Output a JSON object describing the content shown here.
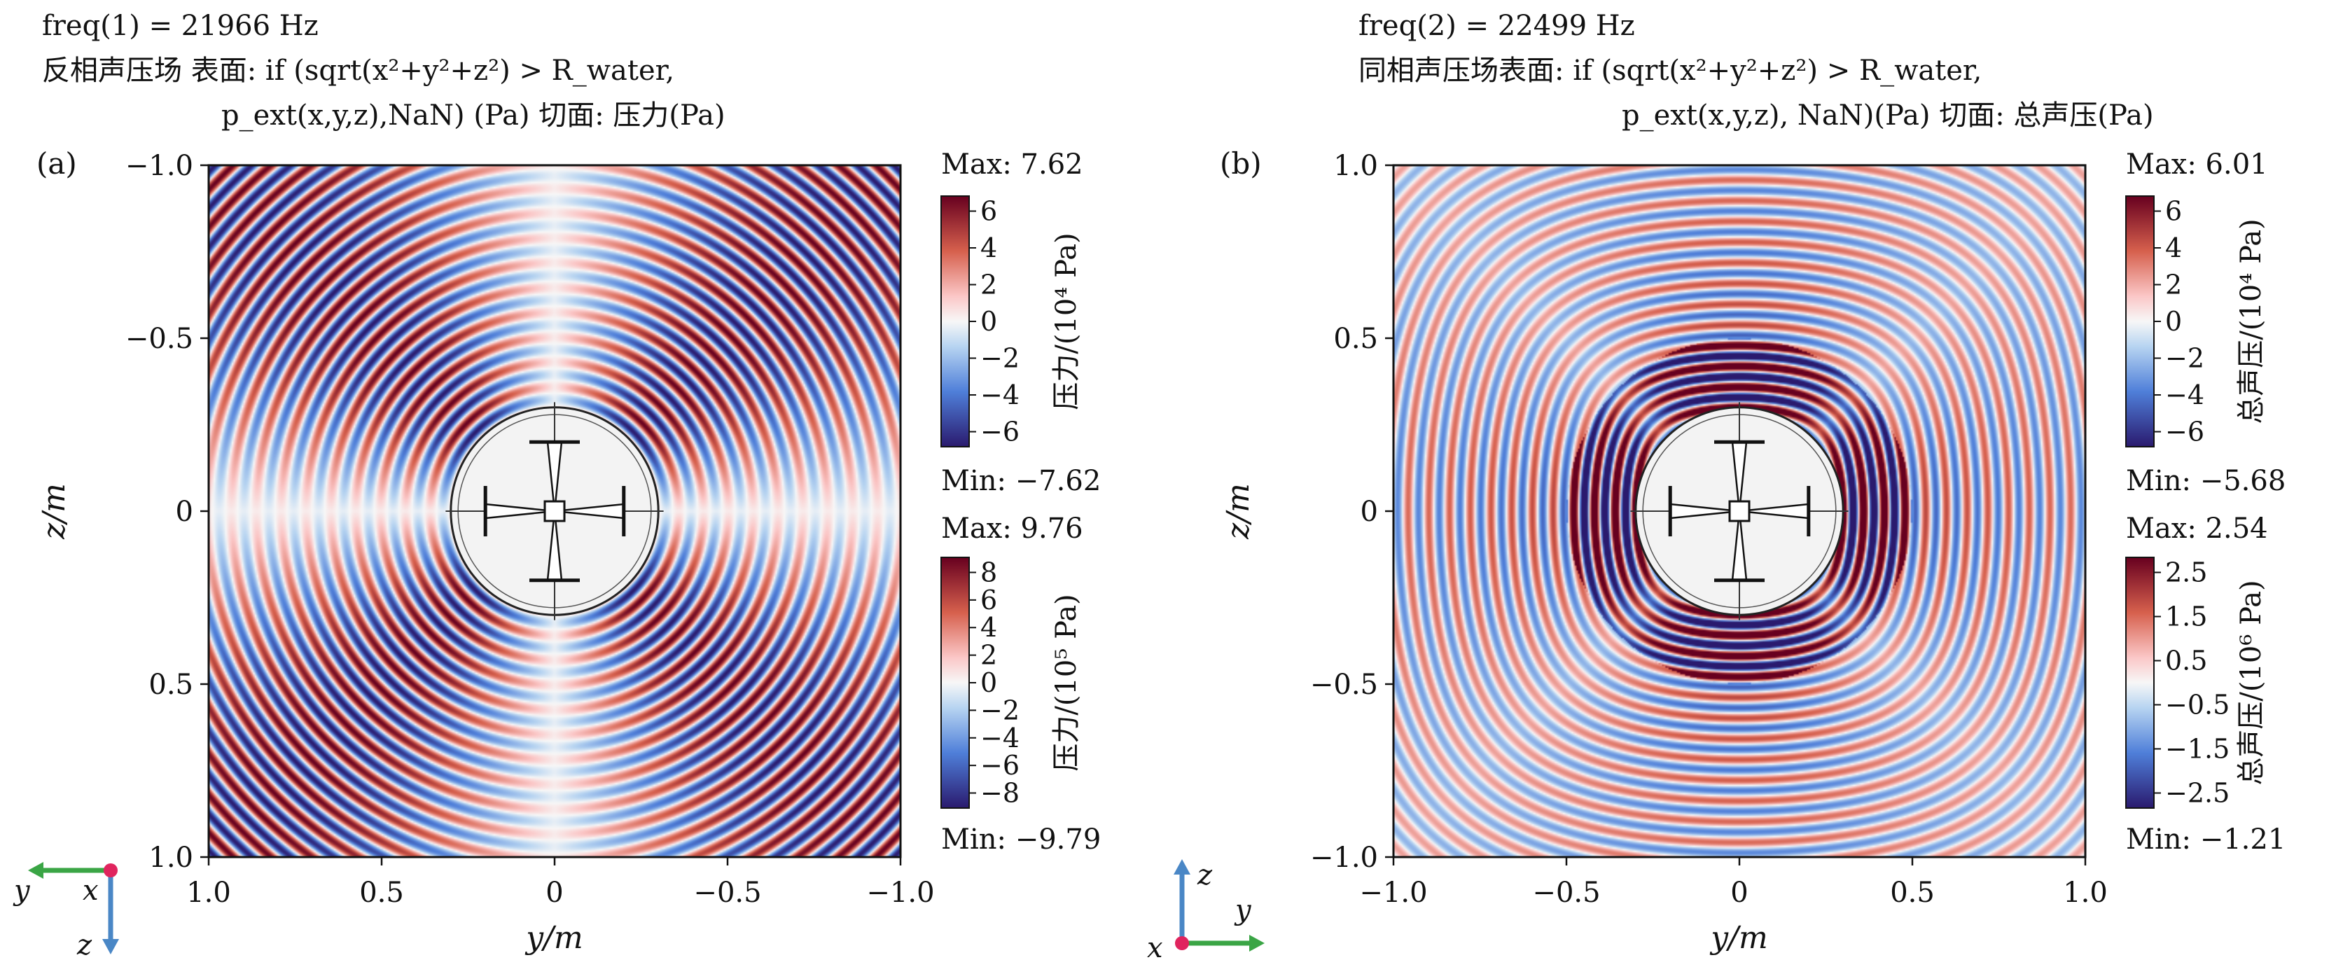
{
  "panels": [
    {
      "panel_label": "(a)",
      "header_lines": [
        "freq(1) = 21966 Hz",
        "反相声压场 表面: if (sqrt(x²+y²+z²) > R_water,",
        "p_ext(x,y,z),NaN) (Pa)  切面: 压力(Pa)"
      ],
      "xlabel": "y/m",
      "ylabel": "z/m",
      "xticks": [
        "1.0",
        "0.5",
        "0",
        "−0.5",
        "−1.0"
      ],
      "yticks": [
        "−1.0",
        "−0.5",
        "0",
        "0.5",
        "1.0"
      ],
      "pattern": "antiphase",
      "colorbars": [
        {
          "max_label": "Max: 7.62",
          "min_label": "Min: −7.62",
          "ticks": [
            "6",
            "4",
            "2",
            "0",
            "−2",
            "−4",
            "−6"
          ],
          "label": "压力/(10⁴ Pa)"
        },
        {
          "max_label": "Max: 9.76",
          "min_label": "Min: −9.79",
          "ticks": [
            "8",
            "6",
            "4",
            "2",
            "0",
            "−2",
            "−4",
            "−6",
            "−8"
          ],
          "label": "压力/(10⁵ Pa)"
        }
      ],
      "triad": {
        "horizontal": "y",
        "vertical": "z",
        "out_of_plane": "x"
      }
    },
    {
      "panel_label": "(b)",
      "header_lines": [
        "freq(2) = 22499 Hz",
        "同相声压场表面: if (sqrt(x²+y²+z²) > R_water,",
        "p_ext(x,y,z), NaN)(Pa)  切面: 总声压(Pa)"
      ],
      "xlabel": "y/m",
      "ylabel": "z/m",
      "xticks": [
        "−1.0",
        "−0.5",
        "0",
        "0.5",
        "1.0"
      ],
      "yticks": [
        "1.0",
        "0.5",
        "0",
        "−0.5",
        "−1.0"
      ],
      "pattern": "inphase",
      "colorbars": [
        {
          "max_label": "Max: 6.01",
          "min_label": "Min: −5.68",
          "ticks": [
            "6",
            "4",
            "2",
            "0",
            "−2",
            "−4",
            "−6"
          ],
          "label": "总声压/(10⁴ Pa)"
        },
        {
          "max_label": "Max: 2.54",
          "min_label": "Min: −1.21",
          "ticks": [
            "2.5",
            "1.5",
            "0.5",
            "−0.5",
            "−1.5",
            "−2.5"
          ],
          "label": "总声压/(10⁶ Pa)"
        }
      ],
      "triad": {
        "horizontal": "y",
        "vertical": "z",
        "out_of_plane": "x"
      }
    }
  ],
  "colors": {
    "positive": "#67001f",
    "neutral": "#f7f7f7",
    "negative": "#2c2c8c",
    "triad_green": "#3aa545",
    "triad_blue": "#4a87c6",
    "triad_origin": "#e0245e"
  },
  "chart_data": [
    {
      "type": "heatmap",
      "title": "freq(1) = 21966 Hz",
      "xlabel": "y/m",
      "ylabel": "z/m",
      "xlim": [
        1.0,
        -1.0
      ],
      "ylim": [
        -1.0,
        1.0
      ],
      "colorbar_surface": {
        "max": 7.62,
        "min": -7.62,
        "unit": "10^4 Pa"
      },
      "colorbar_slice": {
        "max": 9.76,
        "min": -9.79,
        "unit": "10^5 Pa"
      }
    },
    {
      "type": "heatmap",
      "title": "freq(2) = 22499 Hz",
      "xlabel": "y/m",
      "ylabel": "z/m",
      "xlim": [
        -1.0,
        1.0
      ],
      "ylim": [
        1.0,
        -1.0
      ],
      "colorbar_surface": {
        "max": 6.01,
        "min": -5.68,
        "unit": "10^4 Pa"
      },
      "colorbar_slice": {
        "max": 2.54,
        "min": -1.21,
        "unit": "10^6 Pa"
      }
    }
  ]
}
